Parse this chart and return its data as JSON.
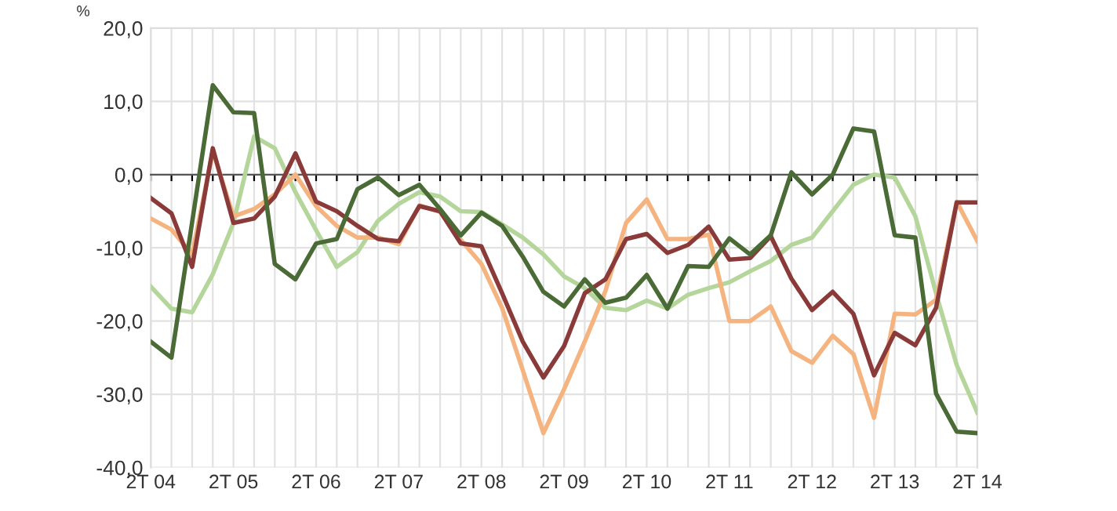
{
  "chart_data": {
    "type": "line",
    "ylabel": "%",
    "categories": [
      "2T 04",
      null,
      null,
      null,
      "2T 05",
      null,
      null,
      null,
      "2T 06",
      null,
      null,
      null,
      "2T 07",
      null,
      null,
      null,
      "2T 08",
      null,
      null,
      null,
      "2T 09",
      null,
      null,
      null,
      "2T 10",
      null,
      null,
      null,
      "2T 11",
      null,
      null,
      null,
      "2T 12",
      null,
      null,
      null,
      "2T 13",
      null,
      null,
      null,
      "2T 14"
    ],
    "ylim": [
      -40,
      20
    ],
    "yticks": [
      {
        "value": -40,
        "label": "-40,0"
      },
      {
        "value": -30,
        "label": "-30,0"
      },
      {
        "value": -20,
        "label": "-20,0"
      },
      {
        "value": -10,
        "label": "-10,0"
      },
      {
        "value": 0,
        "label": "0,0"
      },
      {
        "value": 10,
        "label": "10,0"
      },
      {
        "value": 20,
        "label": "20,0"
      }
    ],
    "grid": true,
    "marker": "none",
    "line_style": "solid",
    "series": [
      {
        "color": "#b5d69b",
        "values": [
          -15.3,
          -18.3,
          -18.8,
          -13.6,
          -6.6,
          5.2,
          3.6,
          -2.4,
          -7.6,
          -12.6,
          -10.6,
          -6.3,
          -4,
          -2.4,
          -3,
          -5,
          -5.1,
          -6.8,
          -8.6,
          -10.9,
          -13.9,
          -15.5,
          -18.2,
          -18.5,
          -17.2,
          -18.3,
          -16.4,
          -15.5,
          -14.7,
          -13.2,
          -11.8,
          -9.6,
          -8.6,
          -5,
          -1.4,
          0,
          -0.4,
          -5.7,
          -16.2,
          -26,
          -32.5
        ]
      },
      {
        "color": "#f5b47f",
        "values": [
          -6,
          -7.5,
          -10.9,
          3.2,
          -5.7,
          -4.7,
          -2.7,
          0,
          -4.3,
          -7,
          -8.6,
          -8.6,
          -9.5,
          -4.2,
          -5.1,
          -8.9,
          -12.2,
          -18.2,
          -26.7,
          -35.3,
          -29.3,
          -22.8,
          -15.9,
          -6.6,
          -3.4,
          -8.8,
          -8.8,
          -8.2,
          -20,
          -20,
          -18,
          -24.1,
          -25.7,
          -22,
          -24.5,
          -33.2,
          -19,
          -19.1,
          -17.1,
          -3.7,
          -9.1
        ]
      },
      {
        "color": "#8b3a3a",
        "values": [
          -3.2,
          -5.3,
          -12.6,
          3.6,
          -6.6,
          -6,
          -3,
          2.9,
          -3.7,
          -5,
          -7,
          -8.8,
          -9.1,
          -4.3,
          -5,
          -9.4,
          -9.8,
          -16.2,
          -22.8,
          -27.7,
          -23.4,
          -16.2,
          -14.3,
          -8.8,
          -8.1,
          -10.7,
          -9.6,
          -7.1,
          -11.6,
          -11.4,
          -8.4,
          -14.2,
          -18.5,
          -16,
          -19,
          -27.4,
          -21.6,
          -23.3,
          -18.2,
          -3.8,
          -3.8
        ]
      },
      {
        "color": "#4a6b35",
        "values": [
          -22.8,
          -25,
          -6.5,
          12.2,
          8.5,
          8.4,
          -12.2,
          -14.3,
          -9.4,
          -8.8,
          -2,
          -0.4,
          -2.8,
          -1.4,
          -4.7,
          -8.3,
          -5.2,
          -7,
          -11.2,
          -16,
          -18,
          -14.3,
          -17.5,
          -16.8,
          -13.7,
          -18.3,
          -12.5,
          -12.6,
          -8.7,
          -10.9,
          -8.3,
          0.3,
          -2.7,
          0,
          6.3,
          5.9,
          -8.3,
          -8.6,
          -29.9,
          -35.1,
          -35.3
        ]
      }
    ]
  }
}
